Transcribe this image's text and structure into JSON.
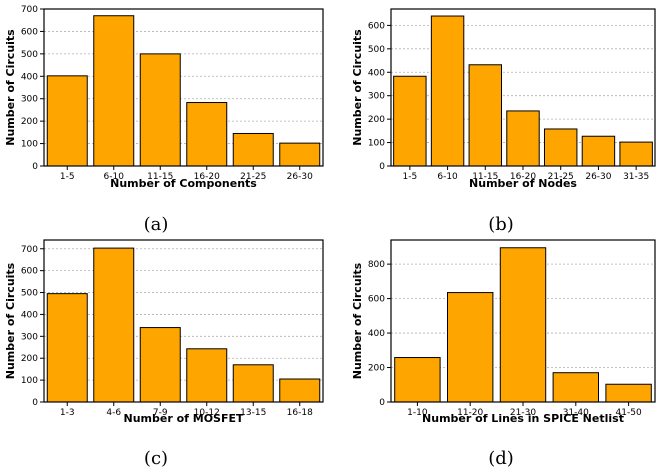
{
  "chart_data": [
    {
      "type": "bar",
      "caption": "(a)",
      "xlabel": "Number of Components",
      "ylabel": "Number of Circuits",
      "categories": [
        "1-5",
        "6-10",
        "11-15",
        "16-20",
        "21-25",
        "26-30"
      ],
      "values": [
        402,
        670,
        500,
        283,
        145,
        102
      ],
      "ylim": [
        0,
        700
      ],
      "yticks": [
        0,
        100,
        200,
        300,
        400,
        500,
        600,
        700
      ],
      "grid": true,
      "bar_color": "#FFA500"
    },
    {
      "type": "bar",
      "caption": "(b)",
      "xlabel": "Number of Nodes",
      "ylabel": "Number of Circuits",
      "categories": [
        "1-5",
        "6-10",
        "11-15",
        "16-20",
        "21-25",
        "26-30",
        "31-35"
      ],
      "values": [
        383,
        640,
        432,
        235,
        158,
        127,
        102
      ],
      "ylim": [
        0,
        670
      ],
      "yticks": [
        0,
        100,
        200,
        300,
        400,
        500,
        600
      ],
      "grid": true,
      "bar_color": "#FFA500"
    },
    {
      "type": "bar",
      "caption": "(c)",
      "xlabel": "Number of MOSFET",
      "ylabel": "Number of Circuits",
      "categories": [
        "1-3",
        "4-6",
        "7-9",
        "10-12",
        "13-15",
        "16-18"
      ],
      "values": [
        495,
        703,
        340,
        243,
        170,
        105
      ],
      "ylim": [
        0,
        740
      ],
      "yticks": [
        0,
        100,
        200,
        300,
        400,
        500,
        600,
        700
      ],
      "grid": true,
      "bar_color": "#FFA500"
    },
    {
      "type": "bar",
      "caption": "(d)",
      "xlabel": "Number of Lines in SPICE Netlist",
      "ylabel": "Number of Circuits",
      "categories": [
        "1-10",
        "11-20",
        "21-30",
        "31-40",
        "41-50"
      ],
      "values": [
        258,
        635,
        895,
        170,
        103
      ],
      "ylim": [
        0,
        940
      ],
      "yticks": [
        0,
        200,
        400,
        600,
        800
      ],
      "grid": true,
      "bar_color": "#FFA500"
    }
  ]
}
